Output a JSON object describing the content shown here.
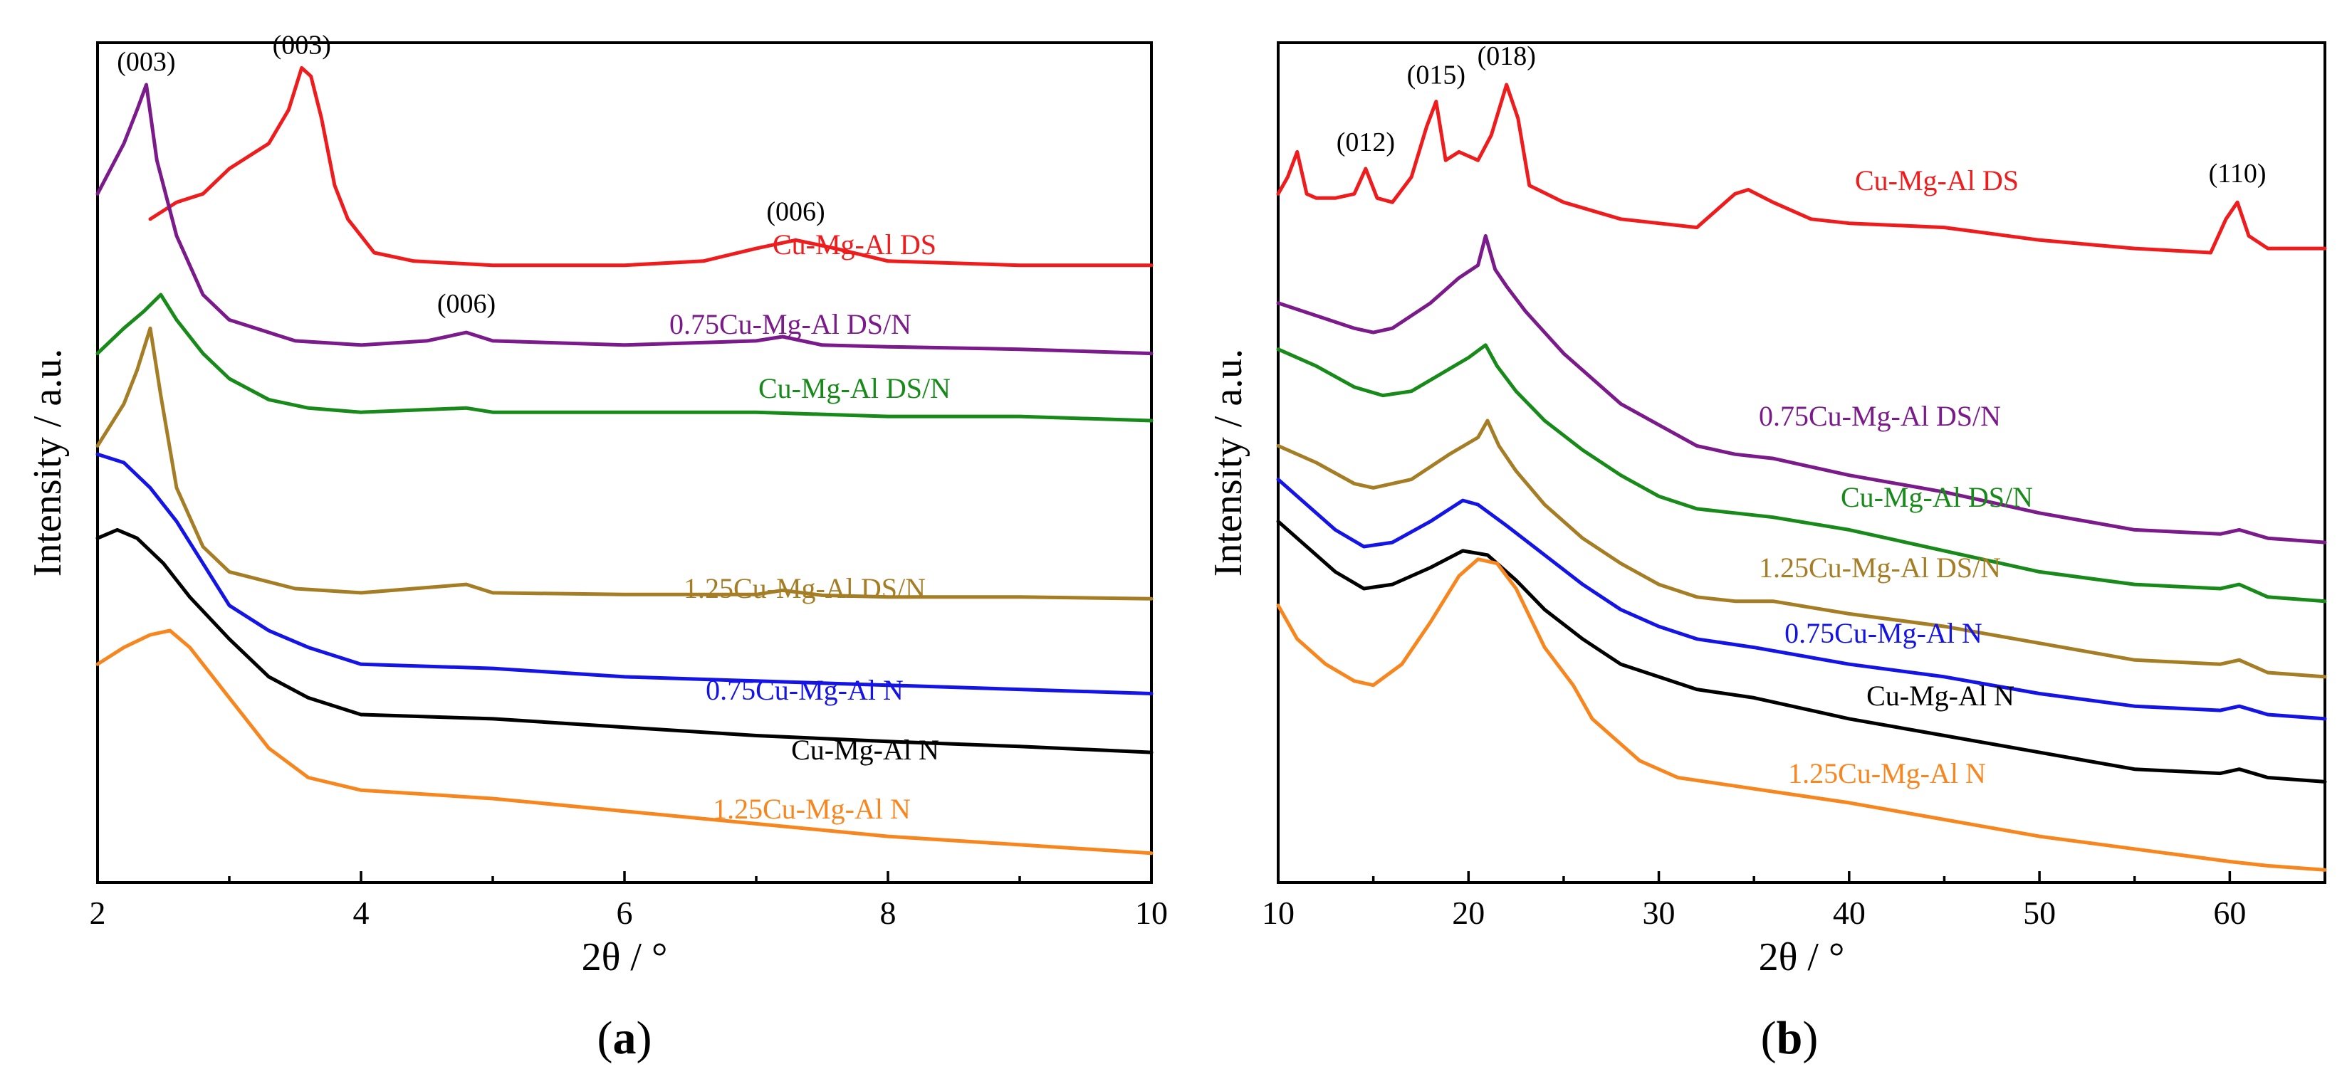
{
  "chart_data": [
    {
      "type": "line",
      "panel_label": "a",
      "xlabel": "2θ / °",
      "ylabel": "Intensity / a.u.",
      "xlim": [
        2,
        10
      ],
      "ylim": [
        0,
        100
      ],
      "xticks": [
        2,
        4,
        6,
        8,
        10
      ],
      "y_tick_labels": false,
      "series": [
        {
          "name": "Cu-Mg-Al DS",
          "color": "#ee1c1c",
          "x": [
            2.4,
            2.6,
            2.8,
            3.0,
            3.1,
            3.2,
            3.3,
            3.45,
            3.55,
            3.62,
            3.7,
            3.8,
            3.9,
            4.1,
            4.4,
            5.0,
            6.0,
            6.6,
            7.0,
            7.3,
            7.6,
            8.0,
            9.0,
            10.0
          ],
          "y": [
            79,
            81,
            82,
            85,
            86,
            87,
            88,
            92,
            97,
            96,
            91,
            83,
            79,
            75,
            74,
            73.5,
            73.5,
            74,
            75.5,
            76.5,
            75.5,
            74,
            73.5,
            73.5
          ]
        },
        {
          "name": "0.75Cu-Mg-Al DS/N",
          "color": "#7b1a8a",
          "x": [
            2.0,
            2.2,
            2.3,
            2.37,
            2.45,
            2.6,
            2.8,
            3.0,
            3.5,
            4.0,
            4.5,
            4.8,
            5.0,
            6.0,
            7.0,
            7.2,
            7.5,
            8.0,
            9.0,
            10.0
          ],
          "y": [
            82,
            88,
            92,
            95,
            86,
            77,
            70,
            67,
            64.5,
            64,
            64.5,
            65.5,
            64.5,
            64,
            64.5,
            65,
            64,
            63.8,
            63.5,
            63
          ]
        },
        {
          "name": "Cu-Mg-Al DS/N",
          "color": "#178a1a",
          "x": [
            2.0,
            2.2,
            2.35,
            2.48,
            2.6,
            2.8,
            3.0,
            3.3,
            3.6,
            4.0,
            4.8,
            5.0,
            6.0,
            7.0,
            8.0,
            9.0,
            10.0
          ],
          "y": [
            63,
            66,
            68,
            70,
            67,
            63,
            60,
            57.5,
            56.5,
            56,
            56.5,
            56,
            56,
            56,
            55.5,
            55.5,
            55
          ]
        },
        {
          "name": "1.25Cu-Mg-Al DS/N",
          "color": "#a57d24",
          "x": [
            2.0,
            2.2,
            2.3,
            2.4,
            2.48,
            2.6,
            2.8,
            3.0,
            3.5,
            4.0,
            4.8,
            5.0,
            6.0,
            7.0,
            7.2,
            7.5,
            8.0,
            9.0,
            10.0
          ],
          "y": [
            52,
            57,
            61,
            66,
            58,
            47,
            40,
            37,
            35,
            34.5,
            35.5,
            34.5,
            34.3,
            34.3,
            34.8,
            34.2,
            34,
            34,
            33.8
          ]
        },
        {
          "name": "0.75Cu-Mg-Al N",
          "color": "#1414e6",
          "x": [
            2.0,
            2.2,
            2.4,
            2.6,
            2.8,
            3.0,
            3.3,
            3.6,
            4.0,
            5.0,
            6.0,
            7.0,
            8.0,
            9.0,
            10.0
          ],
          "y": [
            51,
            50,
            47,
            43,
            38,
            33,
            30,
            28,
            26,
            25.5,
            24.5,
            24,
            23.5,
            23,
            22.5
          ]
        },
        {
          "name": "Cu-Mg-Al N",
          "color": "#000000",
          "x": [
            2.0,
            2.15,
            2.3,
            2.5,
            2.7,
            3.0,
            3.3,
            3.6,
            4.0,
            5.0,
            6.0,
            7.0,
            8.0,
            9.0,
            10.0
          ],
          "y": [
            41,
            42,
            41,
            38,
            34,
            29,
            24.5,
            22,
            20,
            19.5,
            18.5,
            17.5,
            16.8,
            16.2,
            15.5
          ]
        },
        {
          "name": "1.25Cu-Mg-Al N",
          "color": "#f7861e",
          "x": [
            2.0,
            2.2,
            2.4,
            2.55,
            2.7,
            3.0,
            3.3,
            3.6,
            4.0,
            5.0,
            6.0,
            7.0,
            8.0,
            9.0,
            10.0
          ],
          "y": [
            26,
            28,
            29.5,
            30,
            28,
            22,
            16,
            12.5,
            11,
            10,
            8.5,
            7,
            5.5,
            4.5,
            3.5
          ]
        }
      ],
      "series_labels": [
        "Cu-Mg-Al DS",
        "0.75Cu-Mg-Al DS/N",
        "Cu-Mg-Al DS/N",
        "1.25Cu-Mg-Al DS/N",
        "0.75Cu-Mg-Al N",
        "Cu-Mg-Al N",
        "1.25Cu-Mg-Al N"
      ],
      "annotations": [
        {
          "text": "(003)",
          "x": 2.37,
          "y": 95
        },
        {
          "text": "(003)",
          "x": 3.55,
          "y": 97
        },
        {
          "text": "(006)",
          "x": 7.3,
          "y": 76.5
        },
        {
          "text": "(006)",
          "x": 4.8,
          "y": 65.5
        }
      ]
    },
    {
      "type": "line",
      "panel_label": "b",
      "xlabel": "2θ / °",
      "ylabel": "Intensity / a.u.",
      "xlim": [
        10,
        65
      ],
      "ylim": [
        0,
        100
      ],
      "xticks": [
        10,
        20,
        30,
        40,
        50,
        60
      ],
      "y_tick_labels": false,
      "series": [
        {
          "name": "Cu-Mg-Al DS",
          "color": "#ee1c1c",
          "x": [
            10,
            10.5,
            11,
            11.5,
            12,
            13,
            14,
            14.6,
            15.2,
            16,
            17,
            17.8,
            18.3,
            18.8,
            19.5,
            20.5,
            21.2,
            22,
            22.6,
            23.2,
            25,
            28,
            30,
            32,
            34,
            34.7,
            36,
            38,
            40,
            45,
            50,
            55,
            59,
            59.8,
            60.4,
            61,
            62,
            65
          ],
          "y": [
            82,
            84,
            87,
            82,
            81.5,
            81.5,
            82,
            85,
            81.5,
            81,
            84,
            90,
            93,
            86,
            87,
            86,
            89,
            95,
            91,
            83,
            81,
            79,
            78.5,
            78,
            82,
            82.5,
            81,
            79,
            78.5,
            78,
            76.5,
            75.5,
            75,
            79,
            81,
            77,
            75.5,
            75.5
          ]
        },
        {
          "name": "0.75Cu-Mg-Al DS/N",
          "color": "#7b1a8a",
          "x": [
            10,
            12,
            14,
            15,
            16,
            18,
            19.5,
            20.5,
            20.9,
            21.4,
            22,
            23,
            25,
            28,
            30,
            32,
            34,
            36,
            40,
            45,
            50,
            55,
            59.5,
            60.5,
            62,
            65
          ],
          "y": [
            69,
            67.5,
            66,
            65.5,
            66,
            69,
            72,
            73.5,
            77,
            73,
            71,
            68,
            63,
            57,
            54.5,
            52,
            51,
            50.5,
            48.5,
            46.5,
            44,
            42,
            41.5,
            42,
            41,
            40.5
          ]
        },
        {
          "name": "Cu-Mg-Al DS/N",
          "color": "#178a1a",
          "x": [
            10,
            12,
            14,
            15.5,
            17,
            18.5,
            20,
            20.9,
            21.5,
            22.5,
            24,
            26,
            28,
            30,
            32,
            34,
            36,
            40,
            45,
            50,
            55,
            59.5,
            60.5,
            62,
            65
          ],
          "y": [
            63.5,
            61.5,
            59,
            58,
            58.5,
            60.5,
            62.5,
            64,
            61.5,
            58.5,
            55,
            51.5,
            48.5,
            46,
            44.5,
            44,
            43.5,
            42,
            39.5,
            37,
            35.5,
            35,
            35.5,
            34,
            33.5
          ]
        },
        {
          "name": "1.25Cu-Mg-Al DS/N",
          "color": "#a57d24",
          "x": [
            10,
            12,
            14,
            15,
            17,
            19,
            20.5,
            21,
            21.6,
            22.5,
            24,
            26,
            28,
            30,
            32,
            34,
            36,
            40,
            45,
            50,
            55,
            59.5,
            60.5,
            62,
            65
          ],
          "y": [
            52,
            50,
            47.5,
            47,
            48,
            51,
            53,
            55,
            52,
            49,
            45,
            41,
            38,
            35.5,
            34,
            33.5,
            33.5,
            32,
            30.5,
            28.5,
            26.5,
            26,
            26.5,
            25,
            24.5
          ]
        },
        {
          "name": "0.75Cu-Mg-Al N",
          "color": "#1414e6",
          "x": [
            10,
            11.5,
            13,
            14.5,
            16,
            18,
            19.7,
            20.5,
            22,
            24,
            26,
            28,
            30,
            32,
            35,
            40,
            45,
            50,
            55,
            59.5,
            60.5,
            62,
            65
          ],
          "y": [
            48,
            45,
            42,
            40,
            40.5,
            43,
            45.5,
            45,
            42.5,
            39,
            35.5,
            32.5,
            30.5,
            29,
            28,
            26,
            24.5,
            22.5,
            21,
            20.5,
            21,
            20,
            19.5
          ]
        },
        {
          "name": "Cu-Mg-Al N",
          "color": "#000000",
          "x": [
            10,
            11.5,
            13,
            14.5,
            16,
            18,
            19.7,
            21,
            22.5,
            24,
            26,
            28,
            30,
            32,
            35,
            40,
            45,
            50,
            55,
            59.5,
            60.5,
            62,
            65
          ],
          "y": [
            43,
            40,
            37,
            35,
            35.5,
            37.5,
            39.5,
            39,
            36,
            32.5,
            29,
            26,
            24.5,
            23,
            22,
            19.5,
            17.5,
            15.5,
            13.5,
            13,
            13.5,
            12.5,
            12
          ]
        },
        {
          "name": "1.25Cu-Mg-Al N",
          "color": "#f7861e",
          "x": [
            10,
            11,
            12.5,
            14,
            15,
            16.5,
            18,
            19.5,
            20.5,
            21.5,
            22.5,
            24,
            25.5,
            26.5,
            27.5,
            29,
            31,
            34,
            37,
            40,
            45,
            50,
            55,
            60,
            62,
            65
          ],
          "y": [
            33,
            29,
            26,
            24,
            23.5,
            26,
            31,
            36.5,
            38.5,
            38,
            35,
            28,
            23.5,
            19.5,
            17.5,
            14.5,
            12.5,
            11.5,
            10.5,
            9.5,
            7.5,
            5.5,
            4,
            2.5,
            2,
            1.5
          ]
        }
      ],
      "series_labels": [
        "Cu-Mg-Al DS",
        "0.75Cu-Mg-Al DS/N",
        "Cu-Mg-Al DS/N",
        "1.25Cu-Mg-Al DS/N",
        "0.75Cu-Mg-Al N",
        "Cu-Mg-Al N",
        "1.25Cu-Mg-Al N"
      ],
      "annotations": [
        {
          "text": "(012)",
          "x": 14.6,
          "y": 85
        },
        {
          "text": "(015)",
          "x": 18.3,
          "y": 93
        },
        {
          "text": "(018)",
          "x": 22,
          "y": 95
        },
        {
          "text": "(110)",
          "x": 60.4,
          "y": 81
        }
      ]
    }
  ]
}
